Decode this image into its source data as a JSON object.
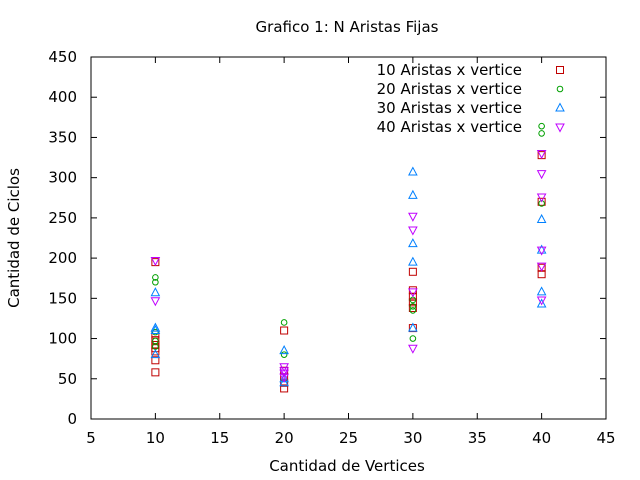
{
  "chart_data": {
    "type": "scatter",
    "title": "Grafico 1: N Aristas Fijas",
    "xlabel": "Cantidad de Vertices",
    "ylabel": "Cantidad de Ciclos",
    "xlim": [
      5,
      45
    ],
    "ylim": [
      0,
      450
    ],
    "xticks": [
      5,
      10,
      15,
      20,
      25,
      30,
      35,
      40,
      45
    ],
    "yticks": [
      0,
      50,
      100,
      150,
      200,
      250,
      300,
      350,
      400,
      450
    ],
    "grid": false,
    "legend_position": "top-right",
    "series": [
      {
        "name": "10 Aristas x vertice",
        "color": "#c00000",
        "marker": "square",
        "points": [
          [
            10,
            58
          ],
          [
            10,
            73
          ],
          [
            10,
            84
          ],
          [
            10,
            88
          ],
          [
            10,
            92
          ],
          [
            10,
            98
          ],
          [
            10,
            105
          ],
          [
            10,
            195
          ],
          [
            20,
            38
          ],
          [
            20,
            45
          ],
          [
            20,
            52
          ],
          [
            20,
            60
          ],
          [
            20,
            110
          ],
          [
            30,
            113
          ],
          [
            30,
            138
          ],
          [
            30,
            145
          ],
          [
            30,
            152
          ],
          [
            30,
            160
          ],
          [
            30,
            183
          ],
          [
            40,
            180
          ],
          [
            40,
            188
          ],
          [
            40,
            270
          ],
          [
            40,
            328
          ]
        ]
      },
      {
        "name": "20 Aristas x vertice",
        "color": "#00a000",
        "marker": "circle",
        "points": [
          [
            10,
            90
          ],
          [
            10,
            97
          ],
          [
            10,
            108
          ],
          [
            10,
            170
          ],
          [
            10,
            176
          ],
          [
            20,
            80
          ],
          [
            20,
            120
          ],
          [
            30,
            100
          ],
          [
            30,
            135
          ],
          [
            30,
            140
          ],
          [
            30,
            148
          ],
          [
            40,
            268
          ],
          [
            40,
            355
          ],
          [
            40,
            364
          ]
        ]
      },
      {
        "name": "30 Aristas x vertice",
        "color": "#0080ff",
        "marker": "triangle-up",
        "points": [
          [
            10,
            80
          ],
          [
            10,
            110
          ],
          [
            10,
            113
          ],
          [
            10,
            157
          ],
          [
            20,
            45
          ],
          [
            20,
            50
          ],
          [
            20,
            85
          ],
          [
            30,
            113
          ],
          [
            30,
            195
          ],
          [
            30,
            218
          ],
          [
            30,
            278
          ],
          [
            30,
            307
          ],
          [
            40,
            143
          ],
          [
            40,
            158
          ],
          [
            40,
            210
          ],
          [
            40,
            248
          ]
        ]
      },
      {
        "name": "40 Aristas x vertice",
        "color": "#c000ff",
        "marker": "triangle-down",
        "points": [
          [
            10,
            147
          ],
          [
            10,
            197
          ],
          [
            20,
            52
          ],
          [
            20,
            57
          ],
          [
            20,
            60
          ],
          [
            20,
            65
          ],
          [
            30,
            88
          ],
          [
            30,
            158
          ],
          [
            30,
            235
          ],
          [
            30,
            252
          ],
          [
            40,
            148
          ],
          [
            40,
            190
          ],
          [
            40,
            210
          ],
          [
            40,
            276
          ],
          [
            40,
            305
          ],
          [
            40,
            330
          ]
        ]
      }
    ]
  }
}
